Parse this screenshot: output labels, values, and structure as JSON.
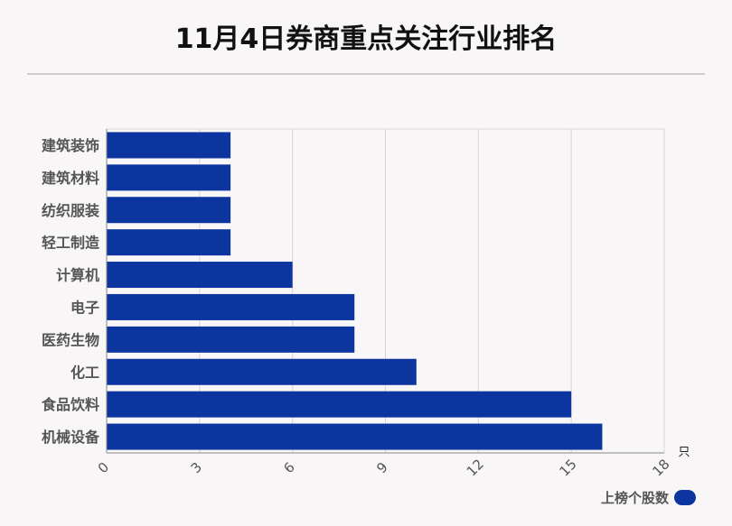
{
  "title": "11月4日券商重点关注行业排名",
  "colors": {
    "bar": "#0c35a0",
    "axis": "#888888",
    "grid": "#d6d6d6",
    "label": "#555555"
  },
  "chart_data": {
    "type": "bar",
    "orientation": "horizontal",
    "title": "11月4日券商重点关注行业排名",
    "categories": [
      "建筑装饰",
      "建筑材料",
      "纺织服装",
      "轻工制造",
      "计算机",
      "电子",
      "医药生物",
      "化工",
      "食品饮料",
      "机械设备"
    ],
    "series": [
      {
        "name": "上榜个股数",
        "values": [
          4,
          4,
          4,
          4,
          6,
          8,
          8,
          10,
          15,
          16
        ]
      }
    ],
    "xticks": [
      0,
      3,
      6,
      9,
      12,
      15,
      18
    ],
    "xlim": [
      0,
      18
    ],
    "unit": "只",
    "grid": true,
    "legend": "bottom-right"
  }
}
